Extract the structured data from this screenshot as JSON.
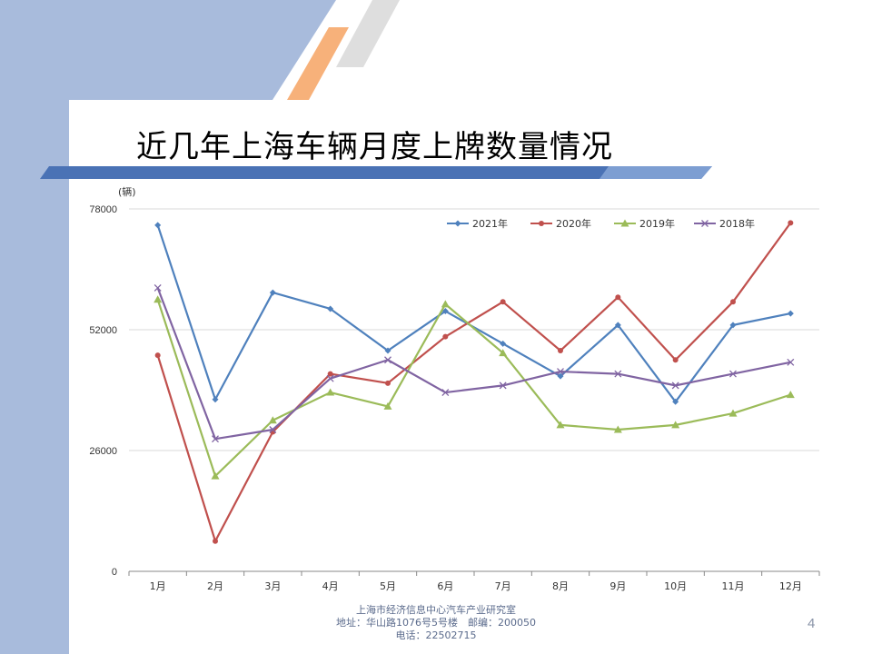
{
  "slide": {
    "title": "近几年上海车辆月度上牌数量情况",
    "page_number": "4",
    "footer": {
      "line1": "上海市经济信息中心汽车产业研究室",
      "line2": "地址：华山路1076号5号楼　邮编：200050",
      "line3": "电话：22502715"
    },
    "colors": {
      "left_band": "#a8bbdc",
      "title_bar": "#4a72b5",
      "stripe_orange": "#f7b17a",
      "stripe_gray": "#dedede"
    }
  },
  "chart_data": {
    "type": "line",
    "unit_label": "(辆)",
    "categories": [
      "1月",
      "2月",
      "3月",
      "4月",
      "5月",
      "6月",
      "7月",
      "8月",
      "9月",
      "10月",
      "11月",
      "12月"
    ],
    "ylim": [
      0,
      78000
    ],
    "yticks": [
      0,
      26000,
      52000,
      78000
    ],
    "ytick_labels": [
      "0",
      "26000",
      "52000",
      "78000"
    ],
    "grid": true,
    "legend_position": "top-right",
    "series": [
      {
        "name": "2021年",
        "color": "#4f81bd",
        "marker": "diamond",
        "values": [
          74500,
          37000,
          60000,
          56500,
          47500,
          56000,
          49000,
          42000,
          53000,
          36500,
          53000,
          55500
        ]
      },
      {
        "name": "2020年",
        "color": "#c0504d",
        "marker": "circle",
        "values": [
          46500,
          6500,
          30000,
          42500,
          40500,
          50500,
          58000,
          47500,
          59000,
          45500,
          58000,
          75000
        ]
      },
      {
        "name": "2019年",
        "color": "#9bbb59",
        "marker": "triangle",
        "values": [
          58500,
          20500,
          32500,
          38500,
          35500,
          57500,
          47000,
          31500,
          30500,
          31500,
          34000,
          38000
        ]
      },
      {
        "name": "2018年",
        "color": "#8064a2",
        "marker": "x",
        "values": [
          61000,
          28500,
          30500,
          41500,
          45500,
          38500,
          40000,
          43000,
          42500,
          40000,
          42500,
          45000
        ]
      }
    ]
  }
}
